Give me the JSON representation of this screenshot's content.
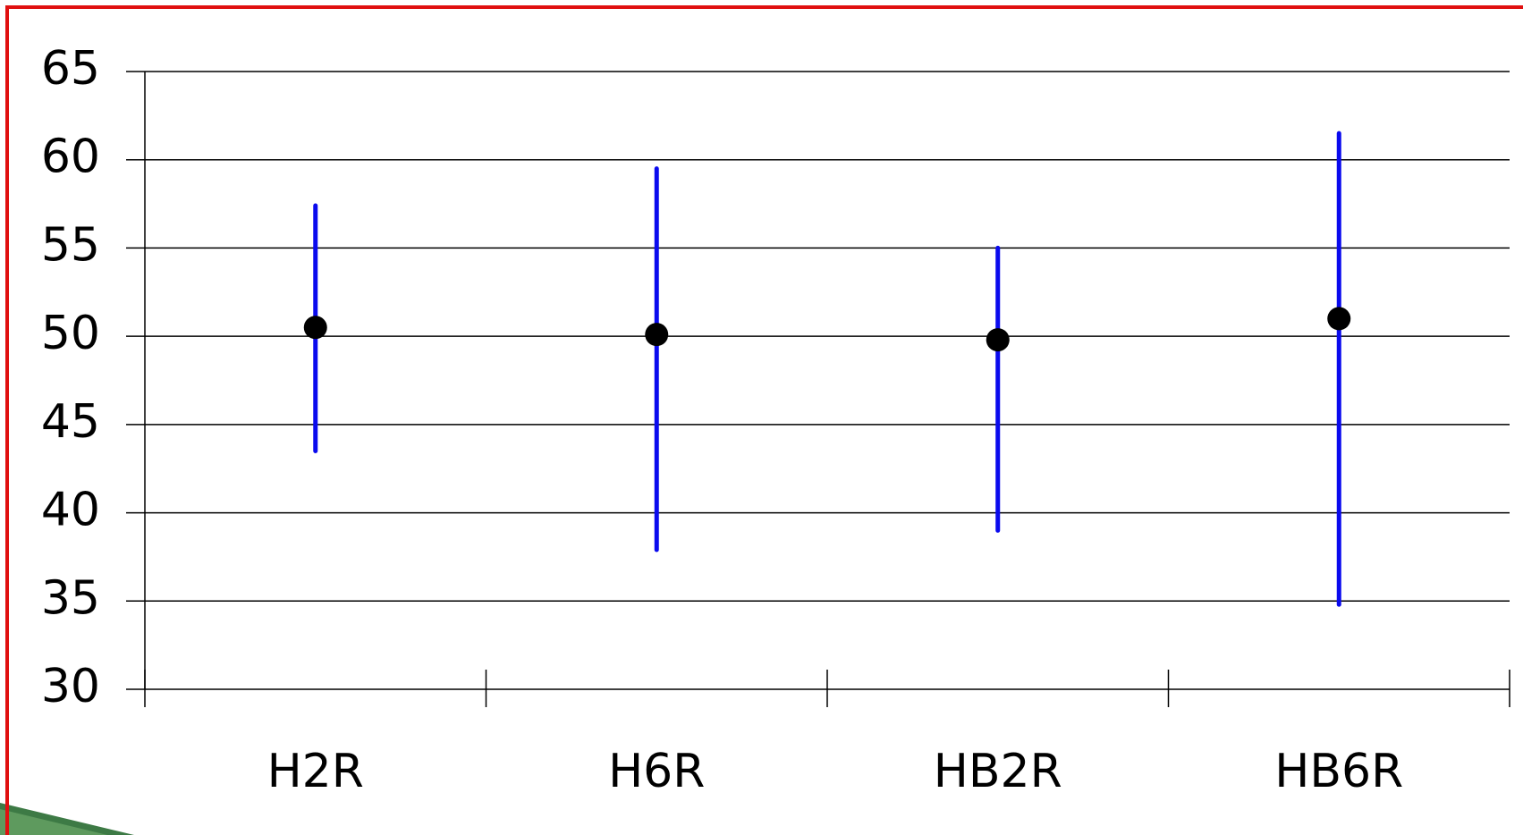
{
  "chart_data": {
    "type": "errorbar",
    "categories": [
      "H2R",
      "H6R",
      "HB2R",
      "HB6R"
    ],
    "series": [
      {
        "values": [
          50.5,
          50.1,
          49.8,
          51.0
        ],
        "lower": [
          43.5,
          37.9,
          39.0,
          34.8
        ],
        "upper": [
          57.4,
          59.5,
          55.0,
          61.5
        ],
        "color": "#000000",
        "bar_color": "#0a0aee"
      }
    ],
    "ylim": [
      30,
      65
    ],
    "yticks": [
      30,
      35,
      40,
      45,
      50,
      55,
      60,
      65
    ],
    "grid": true
  }
}
